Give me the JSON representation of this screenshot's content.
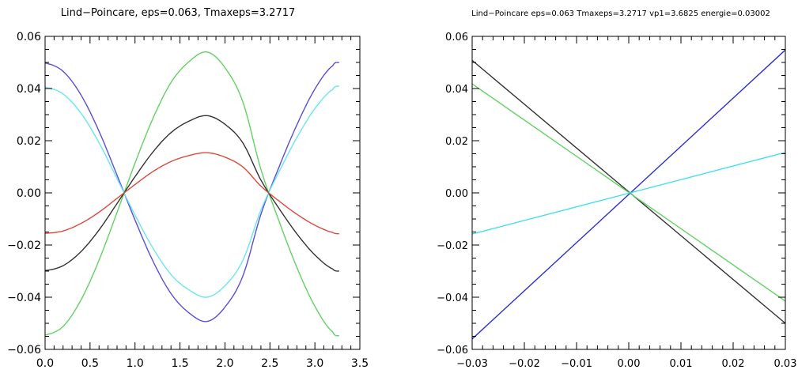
{
  "chart_data": [
    {
      "type": "line",
      "title": "Lind−Poincare, eps=0.063,  Tmaxeps=3.2717",
      "xlabel": "",
      "ylabel": "",
      "xlim": [
        0.0,
        3.5
      ],
      "ylim": [
        -0.06,
        0.06
      ],
      "xticks": [
        "0.0",
        "0.5",
        "1.0",
        "1.5",
        "2.0",
        "2.5",
        "3.0",
        "3.5"
      ],
      "yticks": [
        "−0.06",
        "−0.04",
        "−0.02",
        "0.00",
        "0.02",
        "0.04",
        "0.06"
      ],
      "grid": false,
      "x": [
        0.0,
        0.2,
        0.4,
        0.6,
        0.8,
        1.0,
        1.2,
        1.4,
        1.6,
        1.8,
        2.0,
        2.2,
        2.4,
        2.6,
        2.8,
        3.0,
        3.2,
        3.27
      ],
      "series": [
        {
          "color": "#5a4fd6",
          "values": [
            0.0498,
            0.0466,
            0.0375,
            0.0236,
            0.0068,
            -0.0104,
            -0.0262,
            -0.0386,
            -0.046,
            -0.0493,
            -0.0438,
            -0.0318,
            -0.0082,
            0.0098,
            0.0261,
            0.0398,
            0.0488,
            0.05
          ]
        },
        {
          "color": "#6ae6ee",
          "values": [
            0.0405,
            0.0379,
            0.0305,
            0.0192,
            0.0055,
            -0.0085,
            -0.0212,
            -0.0313,
            -0.0372,
            -0.04,
            -0.0356,
            -0.0258,
            -0.0066,
            0.008,
            0.0212,
            0.0323,
            0.0397,
            0.041
          ]
        },
        {
          "color": "#62d262",
          "values": [
            -0.0545,
            -0.0512,
            -0.041,
            -0.0258,
            -0.0075,
            0.0114,
            0.0286,
            0.0423,
            0.0503,
            0.054,
            0.048,
            0.0348,
            0.009,
            -0.0107,
            -0.0286,
            -0.0435,
            -0.0534,
            -0.0548
          ]
        },
        {
          "color": "#333333",
          "values": [
            -0.0298,
            -0.0279,
            -0.0225,
            -0.0142,
            -0.0041,
            0.0062,
            0.0157,
            0.0231,
            0.0275,
            0.0296,
            0.0263,
            0.0191,
            0.0049,
            -0.0059,
            -0.0157,
            -0.0238,
            -0.0292,
            -0.03
          ]
        },
        {
          "color": "#d94a3e",
          "values": [
            -0.0155,
            -0.0146,
            -0.0117,
            -0.0074,
            -0.0021,
            0.0032,
            0.0082,
            0.012,
            0.0143,
            0.0154,
            0.0137,
            0.0099,
            0.0026,
            -0.0031,
            -0.0082,
            -0.0124,
            -0.0152,
            -0.0157
          ]
        }
      ]
    },
    {
      "type": "line",
      "title": "Lind−Poincare eps=0.063 Tmaxeps=3.2717 vp1=3.6825 energie=0.03002",
      "xlabel": "",
      "ylabel": "",
      "xlim": [
        -0.03,
        0.03
      ],
      "ylim": [
        -0.06,
        0.06
      ],
      "xticks": [
        "−0.03",
        "−0.02",
        "−0.01",
        "0.00",
        "0.01",
        "0.02",
        "0.03"
      ],
      "yticks": [
        "−0.06",
        "−0.04",
        "−0.02",
        "0.00",
        "0.02",
        "0.04",
        "0.06"
      ],
      "grid": false,
      "x": [
        -0.03,
        0.03
      ],
      "series": [
        {
          "color": "#333333",
          "values": [
            0.0508,
            -0.05
          ]
        },
        {
          "color": "#62d262",
          "values": [
            0.0418,
            -0.0415
          ]
        },
        {
          "color": "#2f2fd0",
          "values": [
            -0.056,
            0.0548
          ]
        },
        {
          "color": "#3ee0ee",
          "values": [
            -0.0158,
            0.0155
          ]
        }
      ]
    }
  ]
}
